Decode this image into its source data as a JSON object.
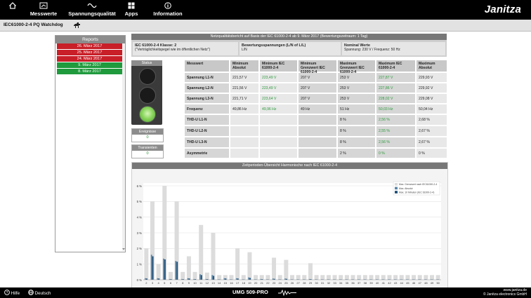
{
  "nav": {
    "items": [
      {
        "label": "Messwerte",
        "icon": "gauge-icon"
      },
      {
        "label": "Spannungsqualität",
        "icon": "sine-wave-icon"
      },
      {
        "label": "Apps",
        "icon": "apps-grid-icon"
      },
      {
        "label": "Information",
        "icon": "info-icon"
      }
    ],
    "brand": "Janitza"
  },
  "subheader": {
    "title": "IEC61000-2-4 PQ Watchdog"
  },
  "reports": {
    "title": "Reports",
    "items": [
      {
        "label": "26. März 2017",
        "status": "red"
      },
      {
        "label": "25. März 2017",
        "status": "red"
      },
      {
        "label": "24. März 2017",
        "status": "red"
      },
      {
        "label": "9. März 2017",
        "status": "green"
      },
      {
        "label": "8. März 2017",
        "status": "green"
      }
    ]
  },
  "info": {
    "header": "Netzqualitätsbericht auf Basis der IEC 61000-2-4 ab 9. März 2017 (Bewertungszeitraum: 1 Tag)",
    "class_title": "IEC 61000-2-4 Klasse: 2",
    "class_desc": "(\"Verträglichkeitspegel wie im öffentlichen Netz\")",
    "voltages_title": "Bewertungsspannungen (L/N of L/L)",
    "voltages_value": "L/N",
    "nominal_title": "Nominal Werte",
    "nominal_value": "Spannung: 230 V / Frequenz: 50 Hz"
  },
  "status": {
    "title": "Status"
  },
  "events": {
    "title": "Ereignisse",
    "value": "0"
  },
  "transients": {
    "title": "Transienten",
    "value": "0"
  },
  "table": {
    "headers": [
      "Messwert",
      "Minimum Absolut",
      "Minimum IEC 61000-2-4",
      "Minimum Grenzwert IEC 61000-2-4",
      "Maximum Grenzwert IEC 61000-2-4",
      "Maximum IEC 61000-2-4",
      "Maximum Absolut"
    ],
    "rows": [
      [
        "Spannung L1-N",
        "221,57 V",
        "223,49 V",
        "207 V",
        "253 V",
        "227,87 V",
        "229,93 V"
      ],
      [
        "Spannung L2-N",
        "221,56 V",
        "223,49 V",
        "207 V",
        "253 V",
        "227,86 V",
        "229,92 V"
      ],
      [
        "Spannung L3-N",
        "221,71 V",
        "223,64 V",
        "207 V",
        "253 V",
        "228,02 V",
        "229,08 V"
      ],
      [
        "Frequenz",
        "49,86 Hz",
        "49,96 Hz",
        "49 Hz",
        "51 Hz",
        "50,03 Hz",
        "50,04 Hz"
      ],
      [
        "THD-U L1-N",
        "",
        "",
        "",
        "8 %",
        "2,56 %",
        "2,68 %"
      ],
      [
        "THD-U L2-N",
        "",
        "",
        "",
        "8 %",
        "2,55 %",
        "2,67 %"
      ],
      [
        "THD-U L3-N",
        "",
        "",
        "",
        "8 %",
        "2,56 %",
        "2,67 %"
      ],
      [
        "Asymmetrie",
        "",
        "",
        "",
        "2 %",
        "0 %",
        "0 %"
      ]
    ]
  },
  "chart_data": {
    "type": "bar",
    "title": "Zeitperioden-Übersicht Harmonische nach IEC 61000-2-4",
    "xlabel": "",
    "ylabel": "",
    "ylim": [
      0,
      6
    ],
    "y_ticks": [
      "0 %",
      "1 %",
      "2 %",
      "3 %",
      "4 %",
      "5 %",
      "6 %"
    ],
    "categories": [
      2,
      3,
      4,
      5,
      6,
      7,
      8,
      9,
      10,
      11,
      12,
      13,
      14,
      15,
      16,
      17,
      18,
      19,
      20,
      21,
      22,
      23,
      24,
      25,
      26,
      27,
      28,
      29,
      30,
      31,
      32,
      33,
      34,
      35,
      36,
      37,
      38,
      39,
      40,
      41,
      42,
      43,
      44,
      45,
      46,
      47,
      48,
      49,
      50
    ],
    "legend": [
      "Max. Grenzwert nach IEC61000-2-4",
      "Max. Absolut",
      "Max. 10 Minuten (IEC 61000-2-4)"
    ],
    "legend_placement": "top-right",
    "series": [
      {
        "name": "Max. Grenzwert nach IEC61000-2-4",
        "color": "#dcdcdc",
        "values": [
          2,
          5,
          1,
          6,
          0.5,
          5,
          0.5,
          1.5,
          0.5,
          3.5,
          0.46,
          3,
          0.3,
          0.3,
          0.3,
          2,
          0.3,
          1.76,
          0.3,
          0.3,
          0.3,
          1.41,
          0.3,
          1.27,
          0.3,
          0.3,
          0.3,
          1.06,
          0.3,
          0.3,
          0.3,
          0.3,
          0.3,
          0.3,
          0.3,
          0.3,
          0.3,
          0.3,
          0.3,
          0.3,
          0.3,
          0.3,
          0.3,
          0.3,
          0.3,
          0.3,
          0.3,
          0.3,
          0.3
        ]
      },
      {
        "name": "Max. Absolut",
        "color": "#5b86a8",
        "values": [
          0.1,
          1.6,
          0.1,
          1.35,
          0.05,
          1.2,
          0.05,
          0.1,
          0.05,
          0.35,
          0.05,
          0.3,
          0.03,
          0.1,
          0.03,
          0.1,
          0.03,
          0.15,
          0.03,
          0.05,
          0.03,
          0.08,
          0.03,
          0.08,
          0.03,
          0.03,
          0.03,
          0.05,
          0.03,
          0.03,
          0.03,
          0.03,
          0.03,
          0.03,
          0.03,
          0.03,
          0.03,
          0.03,
          0.03,
          0.03,
          0.03,
          0.03,
          0.03,
          0.03,
          0.03,
          0.03,
          0.03,
          0.03,
          0.03
        ]
      },
      {
        "name": "Max. 10 Minuten (IEC 61000-2-4)",
        "color": "#1a4b75",
        "values": [
          0.08,
          1.5,
          0.08,
          1.3,
          0.04,
          1.15,
          0.04,
          0.08,
          0.04,
          0.3,
          0.04,
          0.25,
          0.02,
          0.08,
          0.02,
          0.08,
          0.02,
          0.12,
          0.02,
          0.04,
          0.02,
          0.06,
          0.02,
          0.06,
          0.02,
          0.02,
          0.02,
          0.04,
          0.02,
          0.02,
          0.02,
          0.02,
          0.02,
          0.02,
          0.02,
          0.02,
          0.02,
          0.02,
          0.02,
          0.02,
          0.02,
          0.02,
          0.02,
          0.02,
          0.02,
          0.02,
          0.02,
          0.02,
          0.02
        ]
      }
    ]
  },
  "footer": {
    "help": "Hilfe",
    "language": "Deutsch",
    "device": "UMG 509-PRO",
    "website": "www.janitza.de",
    "copyright": "© Janitza electronics GmbH"
  },
  "colors": {
    "red": "#c81f28",
    "green": "#1f9a3d",
    "ok_text": "#2a9a3a"
  }
}
